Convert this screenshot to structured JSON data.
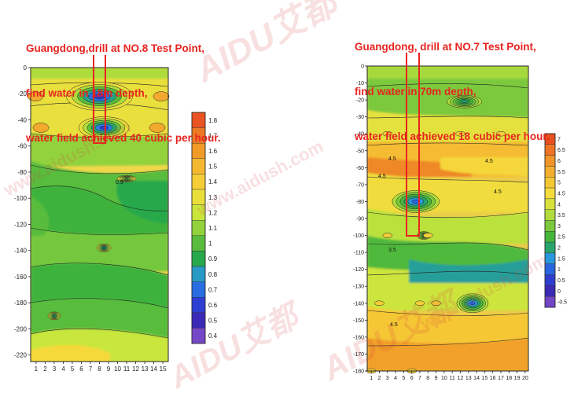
{
  "captions": {
    "left": {
      "line1": "Guangdong,drill at  NO.8 Test Point,",
      "line2": "find water in 18m depth,",
      "line3": "water field achieved 40 cubic per hour."
    },
    "right": {
      "line1": "Guangdong, drill at  NO.7 Test Point,",
      "line2": "find water in 70m depth,",
      "line3": "water field achieved 18 cubic per hour."
    }
  },
  "watermark": {
    "brand": "AIDU艾都",
    "site": "www.aidush.com"
  },
  "chart_data": [
    {
      "type": "heatmap",
      "title": "",
      "xlabel": "",
      "ylabel": "",
      "x_ticks": [
        1,
        2,
        3,
        4,
        5,
        6,
        7,
        8,
        9,
        10,
        11,
        12,
        13,
        14,
        15
      ],
      "y_ticks": [
        0,
        -20,
        -40,
        -60,
        -80,
        -100,
        -120,
        -140,
        -160,
        -180,
        -200,
        -220
      ],
      "xlim": [
        1,
        15
      ],
      "ylim": [
        -225,
        0
      ],
      "colorbar": {
        "ticks": [
          0.4,
          0.5,
          0.6,
          0.7,
          0.8,
          0.9,
          1,
          1.1,
          1.2,
          1.3,
          1.4,
          1.5,
          1.6,
          1.7,
          1.8
        ],
        "range": [
          0.35,
          1.9
        ]
      },
      "contour_labels": [
        "0.9"
      ],
      "drill_point": 8,
      "drill_depth": 18,
      "anomalies": [
        {
          "x": 8,
          "y": -22,
          "value": 0.4
        },
        {
          "x": 8.5,
          "y": -46,
          "value": 0.45
        },
        {
          "x": 8.5,
          "y": -138,
          "value": 0.6
        },
        {
          "x": 3,
          "y": -190,
          "value": 0.7
        },
        {
          "x": 11,
          "y": -85,
          "value": 0.9
        }
      ]
    },
    {
      "type": "heatmap",
      "title": "",
      "xlabel": "",
      "ylabel": "",
      "x_ticks": [
        1,
        2,
        3,
        4,
        5,
        6,
        7,
        8,
        9,
        10,
        11,
        12,
        13,
        14,
        15,
        16,
        17,
        18,
        19,
        20
      ],
      "y_ticks": [
        0,
        -10,
        -20,
        -30,
        -40,
        -50,
        -60,
        -70,
        -80,
        -90,
        -100,
        -110,
        -120,
        -130,
        -140,
        -150,
        -160,
        -170,
        -180
      ],
      "xlim": [
        1,
        20
      ],
      "ylim": [
        -180,
        0
      ],
      "colorbar": {
        "ticks": [
          -0.5,
          0,
          0.5,
          1,
          1.5,
          2,
          2.5,
          3,
          3.5,
          4,
          4.5,
          5,
          5.5,
          6,
          6.5,
          7
        ],
        "range": [
          -0.8,
          7.5
        ]
      },
      "contour_labels": [
        "4.5",
        "4.5",
        "4.5",
        "4.5",
        "3.5",
        "4.5"
      ],
      "drill_point": 7,
      "drill_depth": 70,
      "anomalies": [
        {
          "x": 6.5,
          "y": -80,
          "value": 0.5
        },
        {
          "x": 13.5,
          "y": -140,
          "value": 0.5
        },
        {
          "x": 12.5,
          "y": -21,
          "value": 1.5
        },
        {
          "x": 7.5,
          "y": -100,
          "value": 2
        }
      ]
    }
  ]
}
